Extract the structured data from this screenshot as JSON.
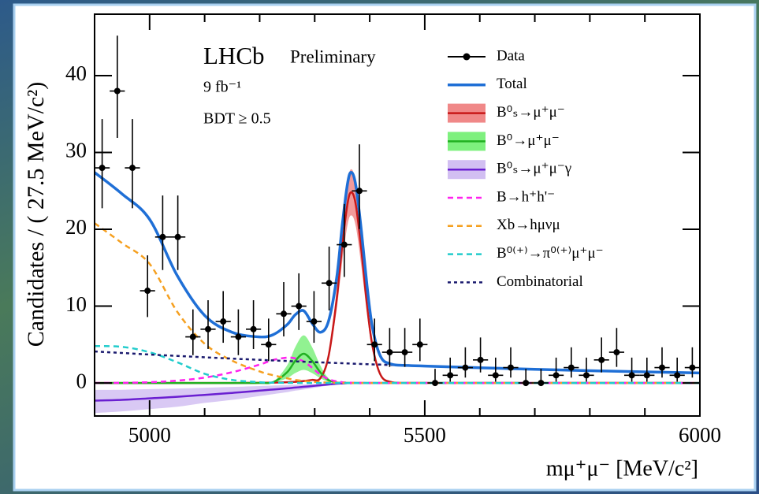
{
  "chart_data": {
    "type": "fit",
    "title": "LHCb",
    "subtitle": "Preliminary",
    "annotations": [
      "9 fb⁻¹",
      "BDT ≥ 0.5"
    ],
    "y_label": "Candidates / ( 27.5 MeV/c²)",
    "x_label": "mμ⁺μ⁻ [MeV/c²]",
    "xlim": [
      4900,
      6000
    ],
    "ylim": [
      -4.3,
      48
    ],
    "xticks": [
      5000,
      5500,
      6000
    ],
    "xticks_minor": [
      4900,
      5100,
      5200,
      5300,
      5400,
      5600,
      5700,
      5800,
      5900
    ],
    "yticks": [
      0,
      10,
      20,
      30,
      40
    ],
    "legend": "top-right",
    "bin_width": 27.5,
    "points": {
      "name": "Data",
      "color": "#000000",
      "x": [
        4913.75,
        4941.25,
        4968.75,
        4996.25,
        5023.75,
        5051.25,
        5078.75,
        5106.25,
        5133.75,
        5161.25,
        5188.75,
        5216.25,
        5243.75,
        5271.25,
        5298.75,
        5326.25,
        5353.75,
        5381.25,
        5408.75,
        5436.25,
        5463.75,
        5491.25,
        5518.75,
        5546.25,
        5573.75,
        5601.25,
        5628.75,
        5656.25,
        5683.75,
        5711.25,
        5738.75,
        5766.25,
        5793.75,
        5821.25,
        5848.75,
        5876.25,
        5903.75,
        5931.25,
        5958.75,
        5986.25
      ],
      "values": [
        28,
        38,
        28,
        12,
        19,
        19,
        6,
        7,
        8,
        6,
        7,
        5,
        9,
        10,
        8,
        13,
        18,
        25,
        5,
        4,
        4,
        5,
        0,
        1,
        2,
        3,
        1,
        2,
        0,
        0,
        1,
        2,
        1,
        3,
        4,
        1,
        1,
        2,
        1,
        2
      ],
      "error_low": [
        5.26,
        6.1,
        5.26,
        3.42,
        4.3,
        4.3,
        2.38,
        2.58,
        2.77,
        2.38,
        2.58,
        2.16,
        2.94,
        3.11,
        2.77,
        3.56,
        4.2,
        4.97,
        2.16,
        1.91,
        1.91,
        2.16,
        0,
        0.83,
        1.3,
        1.63,
        0.83,
        1.3,
        0,
        0,
        0.83,
        1.3,
        0.83,
        1.63,
        1.91,
        0.83,
        0.83,
        1.3,
        0.83,
        1.3
      ],
      "error_high": [
        6.35,
        7.2,
        6.35,
        4.61,
        5.4,
        5.4,
        3.58,
        3.77,
        3.96,
        3.58,
        3.77,
        3.38,
        4.13,
        4.27,
        3.96,
        4.75,
        5.3,
        6.06,
        3.38,
        3.16,
        3.16,
        3.38,
        1.84,
        2.3,
        2.64,
        2.92,
        2.3,
        2.64,
        1.84,
        1.84,
        2.3,
        2.64,
        2.3,
        2.92,
        3.16,
        2.3,
        2.3,
        2.64,
        2.3,
        2.64
      ]
    },
    "x": [
      4900,
      4950,
      5000,
      5050,
      5100,
      5150,
      5200,
      5225,
      5250,
      5265,
      5280,
      5295,
      5310,
      5325,
      5340,
      5350,
      5360,
      5367,
      5375,
      5385,
      5395,
      5405,
      5420,
      5440,
      5470,
      5500,
      5600,
      5700,
      5800,
      5900,
      6000
    ],
    "series": [
      {
        "name": "Total",
        "color": "#1f6fd6",
        "style": "solid",
        "width": 3.5,
        "values": [
          27.4,
          24.6,
          21.3,
          14.0,
          8.8,
          6.6,
          6.0,
          6.3,
          7.6,
          8.9,
          9.4,
          7.8,
          6.6,
          8.0,
          13.7,
          20.5,
          26.1,
          27.4,
          25.6,
          19.7,
          12.7,
          7.2,
          3.4,
          2.44,
          2.27,
          2.2,
          1.98,
          1.78,
          1.6,
          1.44,
          1.3
        ]
      },
      {
        "name": "B⁰ₛ→μ⁺μ⁻",
        "color": "#c81818",
        "style": "solid",
        "width": 2.5,
        "band_color": "#f08888",
        "values": [
          0,
          0,
          0,
          0,
          0,
          0,
          0.02,
          0.05,
          0.1,
          0.15,
          0.25,
          0.4,
          0.6,
          3.4,
          10.9,
          17.9,
          23.5,
          24.8,
          23.1,
          17.2,
          10.2,
          4.8,
          1.0,
          0.1,
          0,
          0,
          0,
          0,
          0,
          0,
          0
        ],
        "band_low": [
          0,
          0,
          0,
          0,
          0,
          0,
          0.02,
          0.04,
          0.09,
          0.13,
          0.22,
          0.35,
          0.53,
          3.0,
          9.6,
          15.8,
          20.7,
          21.8,
          20.3,
          15.1,
          9.0,
          4.2,
          0.9,
          0.09,
          0,
          0,
          0,
          0,
          0,
          0,
          0
        ],
        "band_high": [
          0,
          0,
          0,
          0,
          0,
          0,
          0.02,
          0.06,
          0.11,
          0.17,
          0.28,
          0.45,
          0.67,
          3.8,
          12.2,
          20.0,
          26.3,
          27.8,
          25.9,
          19.3,
          11.4,
          5.4,
          1.1,
          0.11,
          0,
          0,
          0,
          0,
          0,
          0,
          0
        ]
      },
      {
        "name": "B⁰→μ⁺μ⁻",
        "color": "#22b022",
        "style": "solid",
        "width": 2.5,
        "band_color": "#7ef07e",
        "values": [
          0,
          0,
          0,
          0,
          0,
          0,
          0.01,
          0.12,
          1.4,
          2.9,
          3.8,
          2.9,
          1.4,
          0.38,
          0.06,
          0.02,
          0.01,
          0,
          0,
          0,
          0,
          0,
          0,
          0,
          0,
          0,
          0,
          0,
          0,
          0,
          0
        ],
        "band_low": [
          0,
          0,
          0,
          0,
          0,
          0,
          0,
          0.05,
          0.63,
          1.3,
          1.7,
          1.3,
          0.63,
          0.17,
          0.03,
          0.01,
          0,
          0,
          0,
          0,
          0,
          0,
          0,
          0,
          0,
          0,
          0,
          0,
          0,
          0,
          0
        ],
        "band_high": [
          0,
          0,
          0,
          0,
          0,
          0,
          0.02,
          0.2,
          2.3,
          4.7,
          6.2,
          4.7,
          2.3,
          0.62,
          0.1,
          0.03,
          0.02,
          0,
          0,
          0,
          0,
          0,
          0,
          0,
          0,
          0,
          0,
          0,
          0,
          0,
          0
        ]
      },
      {
        "name": "B⁰ₛ→μ⁺μ⁻γ",
        "color": "#6a1fd1",
        "style": "solid",
        "width": 2.5,
        "band_color": "#d2bff2",
        "values": [
          -2.3,
          -2.2,
          -2.0,
          -1.8,
          -1.55,
          -1.3,
          -1.0,
          -0.85,
          -0.7,
          -0.6,
          -0.5,
          -0.4,
          -0.3,
          -0.2,
          -0.1,
          -0.06,
          -0.02,
          0,
          0,
          0,
          0,
          0,
          0,
          0,
          0,
          0,
          0,
          0,
          0,
          0,
          0
        ],
        "band_low": [
          -3.9,
          -3.7,
          -3.4,
          -3.1,
          -2.6,
          -2.2,
          -1.7,
          -1.45,
          -1.2,
          -1.0,
          -0.85,
          -0.68,
          -0.51,
          -0.34,
          -0.17,
          -0.1,
          -0.03,
          0,
          0,
          0,
          0,
          0,
          0,
          0,
          0,
          0,
          0,
          0,
          0,
          0,
          0
        ],
        "band_high": [
          -0.9,
          -0.88,
          -0.8,
          -0.72,
          -0.62,
          -0.52,
          -0.4,
          -0.34,
          -0.28,
          -0.24,
          -0.2,
          -0.16,
          -0.12,
          -0.08,
          -0.04,
          -0.02,
          -0.01,
          0,
          0,
          0,
          0,
          0,
          0,
          0,
          0,
          0,
          0,
          0,
          0,
          0,
          0
        ]
      },
      {
        "name": "B→h⁺h'⁻",
        "color": "#ff22ee",
        "style": "dashed",
        "width": 2.5,
        "values": [
          0,
          0.02,
          0.1,
          0.3,
          0.7,
          1.4,
          2.4,
          3.0,
          3.3,
          3.2,
          2.8,
          2.0,
          1.1,
          0.5,
          0.2,
          0.1,
          0.05,
          0.03,
          0.02,
          0.01,
          0,
          0,
          0,
          0,
          0,
          0,
          0,
          0,
          0,
          0,
          0
        ]
      },
      {
        "name": "Xb→hμνμ",
        "color": "#f5a020",
        "style": "dashed",
        "width": 2.5,
        "values": [
          20.8,
          18.2,
          15.5,
          9.3,
          5.1,
          2.9,
          1.5,
          1.0,
          0.6,
          0.4,
          0.25,
          0.15,
          0.1,
          0.05,
          0.02,
          0.01,
          0,
          0,
          0,
          0,
          0,
          0,
          0,
          0,
          0,
          0,
          0,
          0,
          0,
          0,
          0
        ]
      },
      {
        "name": "B⁰⁽⁺⁾→π⁰⁽⁺⁾μ⁺μ⁻",
        "color": "#22cccc",
        "style": "dashed",
        "width": 2.5,
        "values": [
          4.8,
          4.7,
          4.0,
          2.7,
          1.2,
          0.4,
          0.1,
          0.05,
          0.02,
          0.01,
          0,
          0,
          0,
          0,
          0,
          0,
          0,
          0,
          0,
          0,
          0,
          0,
          0,
          0,
          0,
          0,
          0,
          0,
          0,
          0,
          0
        ]
      },
      {
        "name": "Combinatorial",
        "color": "#1a1a6e",
        "style": "dotted",
        "width": 2.5,
        "values": [
          4.1,
          3.9,
          3.7,
          3.52,
          3.34,
          3.17,
          3.01,
          2.93,
          2.86,
          2.81,
          2.77,
          2.72,
          2.68,
          2.64,
          2.59,
          2.57,
          2.54,
          2.52,
          2.5,
          2.47,
          2.45,
          2.42,
          2.39,
          2.34,
          2.27,
          2.2,
          1.98,
          1.78,
          1.6,
          1.44,
          1.3
        ]
      }
    ]
  }
}
